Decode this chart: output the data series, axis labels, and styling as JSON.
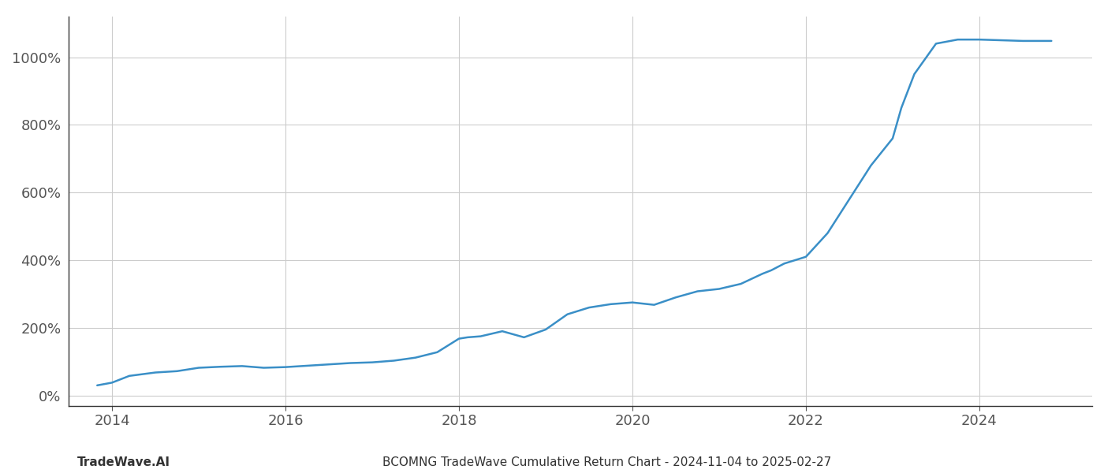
{
  "title": "BCOMNG TradeWave Cumulative Return Chart - 2024-11-04 to 2025-02-27",
  "watermark": "TradeWave.AI",
  "line_color": "#3a8fc7",
  "line_width": 1.8,
  "background_color": "#ffffff",
  "grid_color": "#cccccc",
  "x_start_year": 2013.5,
  "x_end_year": 2025.3,
  "y_min": -30,
  "y_max": 1120,
  "y_ticks": [
    0,
    200,
    400,
    600,
    800,
    1000
  ],
  "x_tick_years": [
    2014,
    2016,
    2018,
    2020,
    2022,
    2024
  ],
  "data_x": [
    2013.83,
    2014.0,
    2014.2,
    2014.5,
    2014.75,
    2015.0,
    2015.25,
    2015.5,
    2015.75,
    2016.0,
    2016.25,
    2016.5,
    2016.75,
    2017.0,
    2017.25,
    2017.5,
    2017.75,
    2018.0,
    2018.1,
    2018.25,
    2018.5,
    2018.75,
    2019.0,
    2019.25,
    2019.5,
    2019.75,
    2020.0,
    2020.25,
    2020.5,
    2020.75,
    2021.0,
    2021.25,
    2021.5,
    2021.6,
    2021.75,
    2022.0,
    2022.25,
    2022.5,
    2022.75,
    2023.0,
    2023.1,
    2023.25,
    2023.5,
    2023.75,
    2024.0,
    2024.25,
    2024.5,
    2024.83
  ],
  "data_y": [
    30,
    38,
    58,
    68,
    72,
    82,
    85,
    87,
    82,
    84,
    88,
    92,
    96,
    98,
    103,
    112,
    128,
    168,
    172,
    175,
    190,
    172,
    195,
    240,
    260,
    270,
    275,
    268,
    290,
    308,
    315,
    330,
    360,
    370,
    390,
    410,
    480,
    580,
    680,
    760,
    850,
    950,
    1040,
    1052,
    1052,
    1050,
    1048,
    1048
  ]
}
